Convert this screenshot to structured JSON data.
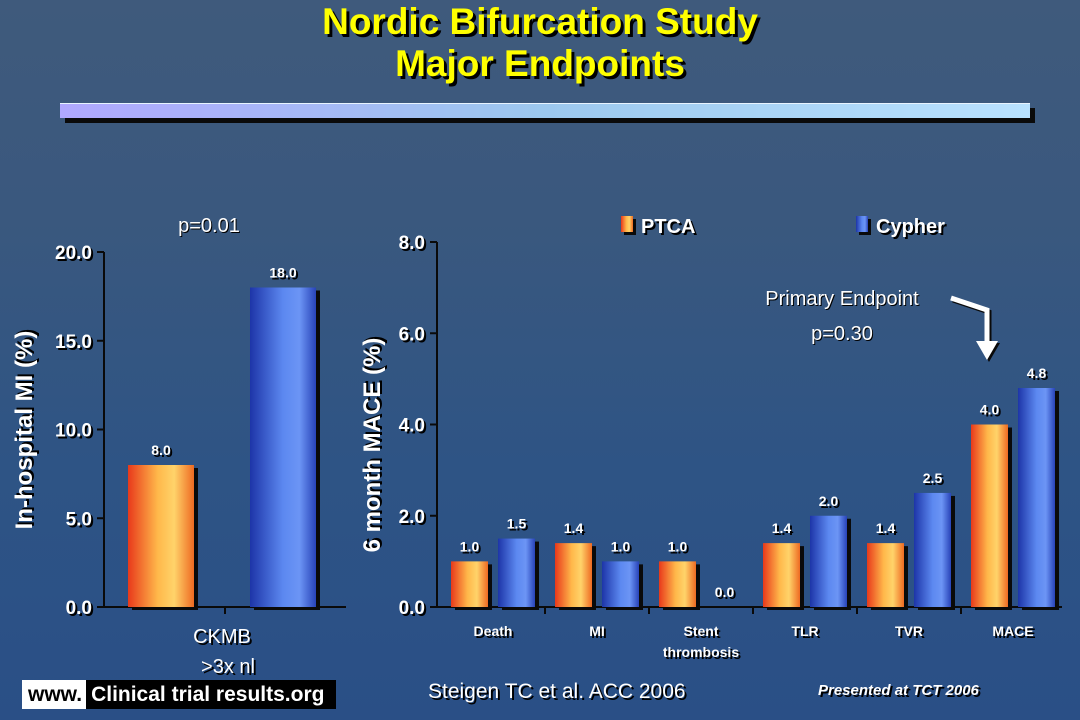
{
  "title": {
    "line1": "Nordic Bifurcation Study",
    "line2": "Major Endpoints"
  },
  "colors": {
    "ptca": "#f26a2a",
    "cypher": "#3c63d8",
    "title": "#ffff00"
  },
  "chart_data": [
    {
      "type": "bar",
      "categories": [
        "CKMB >3x nl"
      ],
      "series": [
        {
          "name": "PTCA",
          "values": [
            8.0
          ]
        },
        {
          "name": "Cypher",
          "values": [
            18.0
          ]
        }
      ],
      "data_labels": [
        "8.0",
        "18.0"
      ],
      "ylabel": "In-hospital MI (%)",
      "ylim": [
        0,
        20
      ],
      "yticks": [
        "0.0",
        "5.0",
        "10.0",
        "15.0",
        "20.0"
      ],
      "xtick_lines": [
        "CKMB",
        ">3x nl"
      ],
      "annotation": "p=0.01",
      "grid": false
    },
    {
      "type": "bar",
      "categories": [
        "Death",
        "MI",
        "Stent thrombosis",
        "TLR",
        "TVR",
        "MACE"
      ],
      "xtick_lines": [
        [
          "Death"
        ],
        [
          "MI"
        ],
        [
          "Stent",
          "thrombosis"
        ],
        [
          "TLR"
        ],
        [
          "TVR"
        ],
        [
          "MACE"
        ]
      ],
      "series": [
        {
          "name": "PTCA",
          "values": [
            1.0,
            1.4,
            1.0,
            1.4,
            1.4,
            4.0
          ]
        },
        {
          "name": "Cypher",
          "values": [
            1.5,
            1.0,
            0.0,
            2.0,
            2.5,
            4.8
          ]
        }
      ],
      "data_labels": {
        "PTCA": [
          "1.0",
          "1.4",
          "1.0",
          "1.4",
          "1.4",
          "4.0"
        ],
        "Cypher": [
          "1.5",
          "1.0",
          "0.0",
          "2.0",
          "2.5",
          "4.8"
        ]
      },
      "ylabel": "6 month MACE (%)",
      "ylim": [
        0,
        8
      ],
      "yticks": [
        "0.0",
        "2.0",
        "4.0",
        "6.0",
        "8.0"
      ],
      "legend": [
        "PTCA",
        "Cypher"
      ],
      "legend_position": "top",
      "annotation": {
        "line1": "Primary Endpoint",
        "line2": "p=0.30",
        "target": "MACE"
      },
      "grid": false
    }
  ],
  "footer": {
    "logo_www": "www.",
    "logo_name": "Clinical trial results.org",
    "citation": "Steigen TC et al. ACC 2006",
    "presented": "Presented at TCT 2006"
  }
}
